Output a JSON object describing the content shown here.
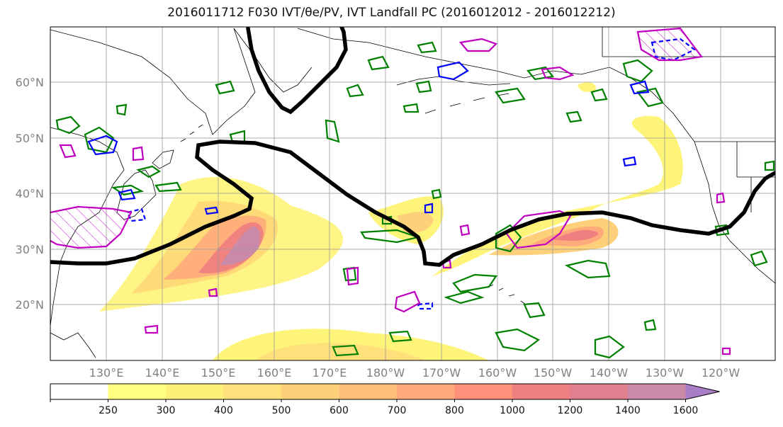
{
  "title": "2016011712 F030 IVT/θe/PV, IVT Landfall PC (2016012012 - 2016012212)",
  "lat_ticks": [
    "60°N",
    "50°N",
    "40°N",
    "30°N",
    "20°N"
  ],
  "lon_ticks": [
    "130°E",
    "140°E",
    "150°E",
    "160°E",
    "170°E",
    "180°W",
    "170°W",
    "160°W",
    "150°W",
    "140°W",
    "130°W",
    "120°W"
  ],
  "colorbar": {
    "levels": [
      "250",
      "300",
      "400",
      "500",
      "600",
      "700",
      "800",
      "1000",
      "1200",
      "1400",
      "1600"
    ],
    "colors": [
      "#ffff80",
      "#fff07a",
      "#ffe07a",
      "#ffd07a",
      "#ffbf7a",
      "#ffaa7a",
      "#ff907a",
      "#f07f82",
      "#e0808e",
      "#c88aa8",
      "#a87cc6"
    ]
  },
  "colors": {
    "contour_black": "#000000",
    "contour_green": "#008000",
    "contour_blue": "#0000ff",
    "contour_magenta": "#c000c0"
  }
}
